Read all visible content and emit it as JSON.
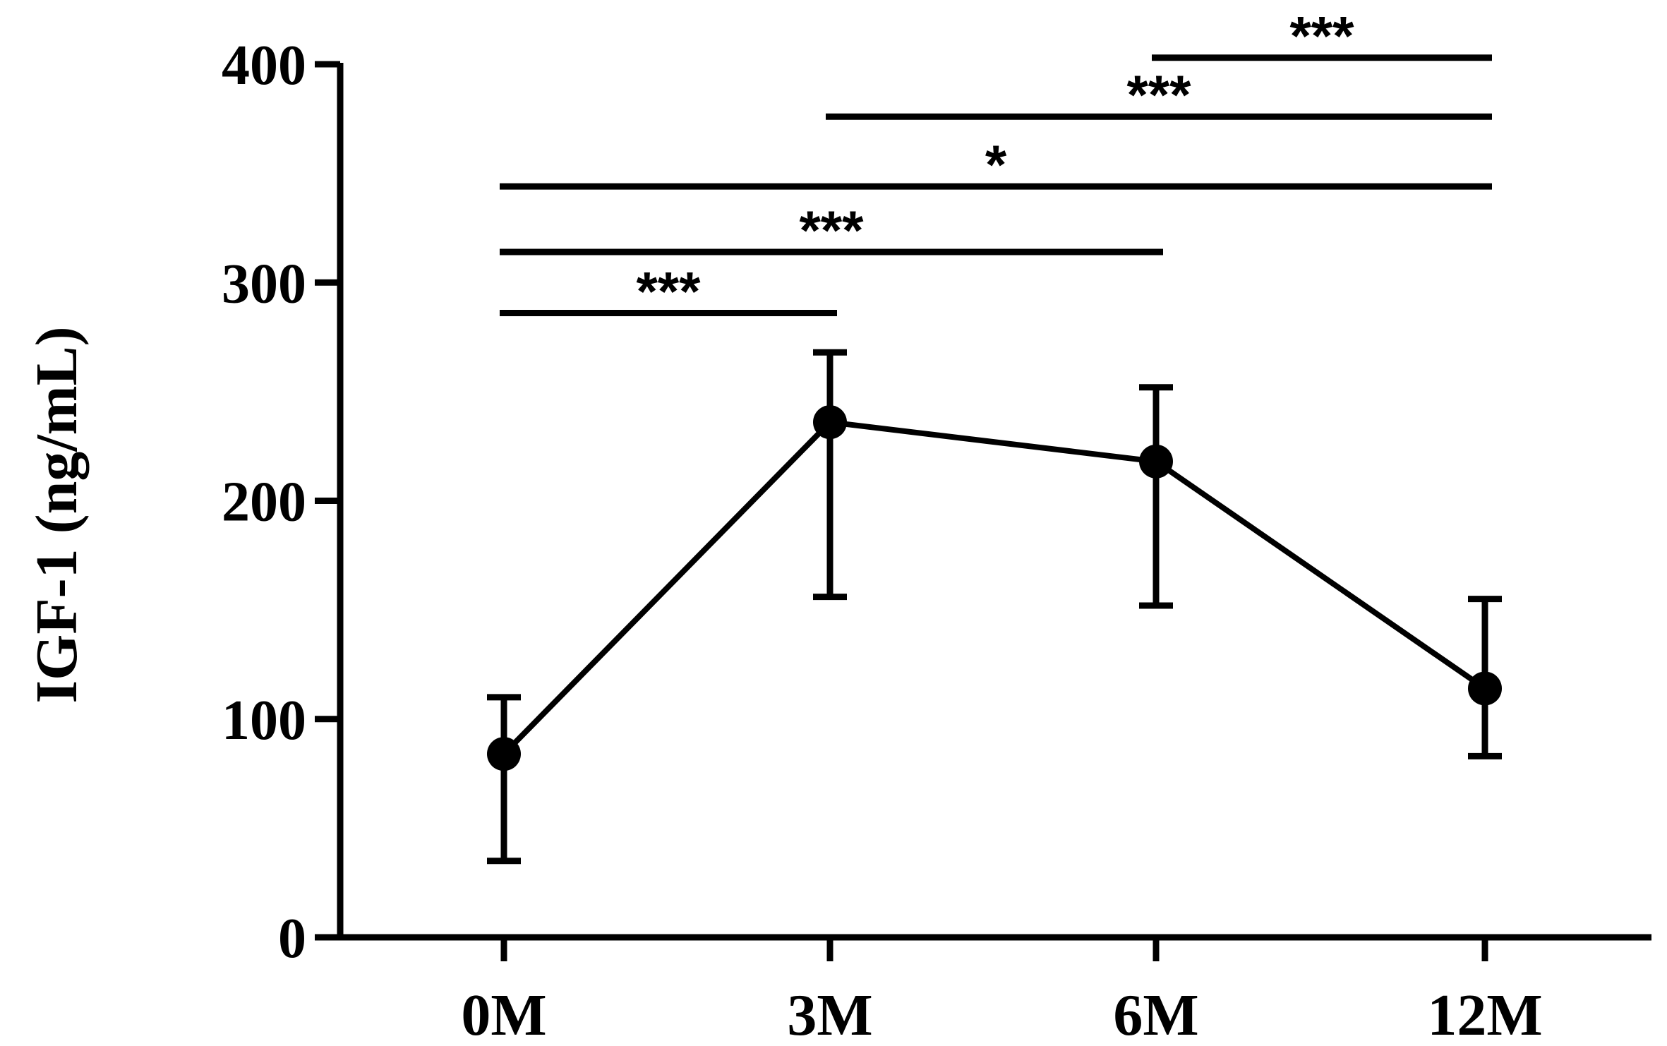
{
  "chart_data": {
    "type": "line",
    "ylabel": "IGF-1 (ng/mL)",
    "xlabel": "",
    "ylim": [
      0,
      400
    ],
    "yticks": [
      0,
      100,
      200,
      300,
      400
    ],
    "categories": [
      "0M",
      "3M",
      "6M",
      "12M"
    ],
    "series": [
      {
        "values": [
          84,
          236,
          218,
          114
        ],
        "error_low": [
          35,
          156,
          152,
          83
        ],
        "error_high": [
          110,
          268,
          252,
          155
        ]
      }
    ],
    "annotations": [
      {
        "from": "0M",
        "to": "3M",
        "label": "***",
        "y": 286
      },
      {
        "from": "0M",
        "to": "6M",
        "label": "***",
        "y": 314
      },
      {
        "from": "0M",
        "to": "12M",
        "label": "*",
        "y": 344
      },
      {
        "from": "3M",
        "to": "12M",
        "label": "***",
        "y": 376
      },
      {
        "from": "6M",
        "to": "12M",
        "label": "***",
        "y": 403
      }
    ],
    "grid": false,
    "colors": {
      "line": "#000000",
      "marker": "#000000"
    }
  }
}
